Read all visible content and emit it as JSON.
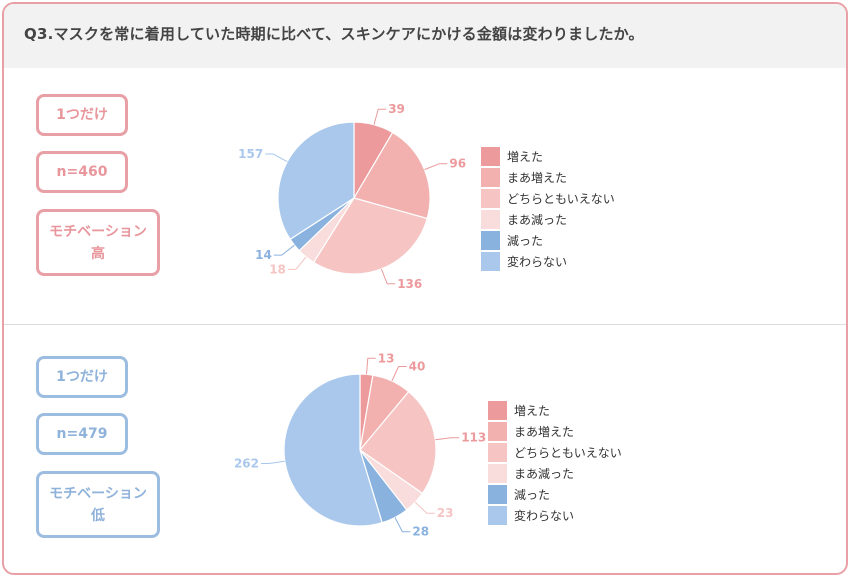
{
  "question": "Q3.マスクを常に着用していた時期に比べて、スキンケアにかける金額は変わりましたか。",
  "colors": {
    "pink_border": "#e8a0a6",
    "blue_border": "#9cbde0",
    "header_bg": "#f2f2f2"
  },
  "panels": [
    {
      "theme": "pink",
      "badge1": "1つだけ",
      "badge2": "n=460",
      "badge3": "モチベーション\n高"
    },
    {
      "theme": "blue",
      "badge1": "1つだけ",
      "badge2": "n=479",
      "badge3": "モチベーション\n低"
    }
  ],
  "chart_data": [
    {
      "type": "pie",
      "categories": [
        "増えた",
        "まあ増えた",
        "どちらともいえない",
        "まあ減った",
        "減った",
        "変わらない"
      ],
      "values": [
        39,
        96,
        136,
        18,
        14,
        157
      ],
      "colors": [
        "#ec9a9c",
        "#f2b0ae",
        "#f5c4c3",
        "#f9dcdc",
        "#8ab2de",
        "#a9c8ec"
      ],
      "label_colors": [
        "#ec9a9c",
        "#ec9a9c",
        "#ec9a9c",
        "#f5c4c3",
        "#8ab2de",
        "#a9c8ec"
      ],
      "legend_position": "right"
    },
    {
      "type": "pie",
      "categories": [
        "増えた",
        "まあ増えた",
        "どちらともいえない",
        "まあ減った",
        "減った",
        "変わらない"
      ],
      "values": [
        13,
        40,
        113,
        23,
        28,
        262
      ],
      "colors": [
        "#ec9a9c",
        "#f2b0ae",
        "#f5c4c3",
        "#f9dcdc",
        "#8ab2de",
        "#a9c8ec"
      ],
      "label_colors": [
        "#ec9a9c",
        "#ec9a9c",
        "#ec9a9c",
        "#f5c4c3",
        "#8ab2de",
        "#a9c8ec"
      ],
      "legend_position": "right"
    }
  ]
}
